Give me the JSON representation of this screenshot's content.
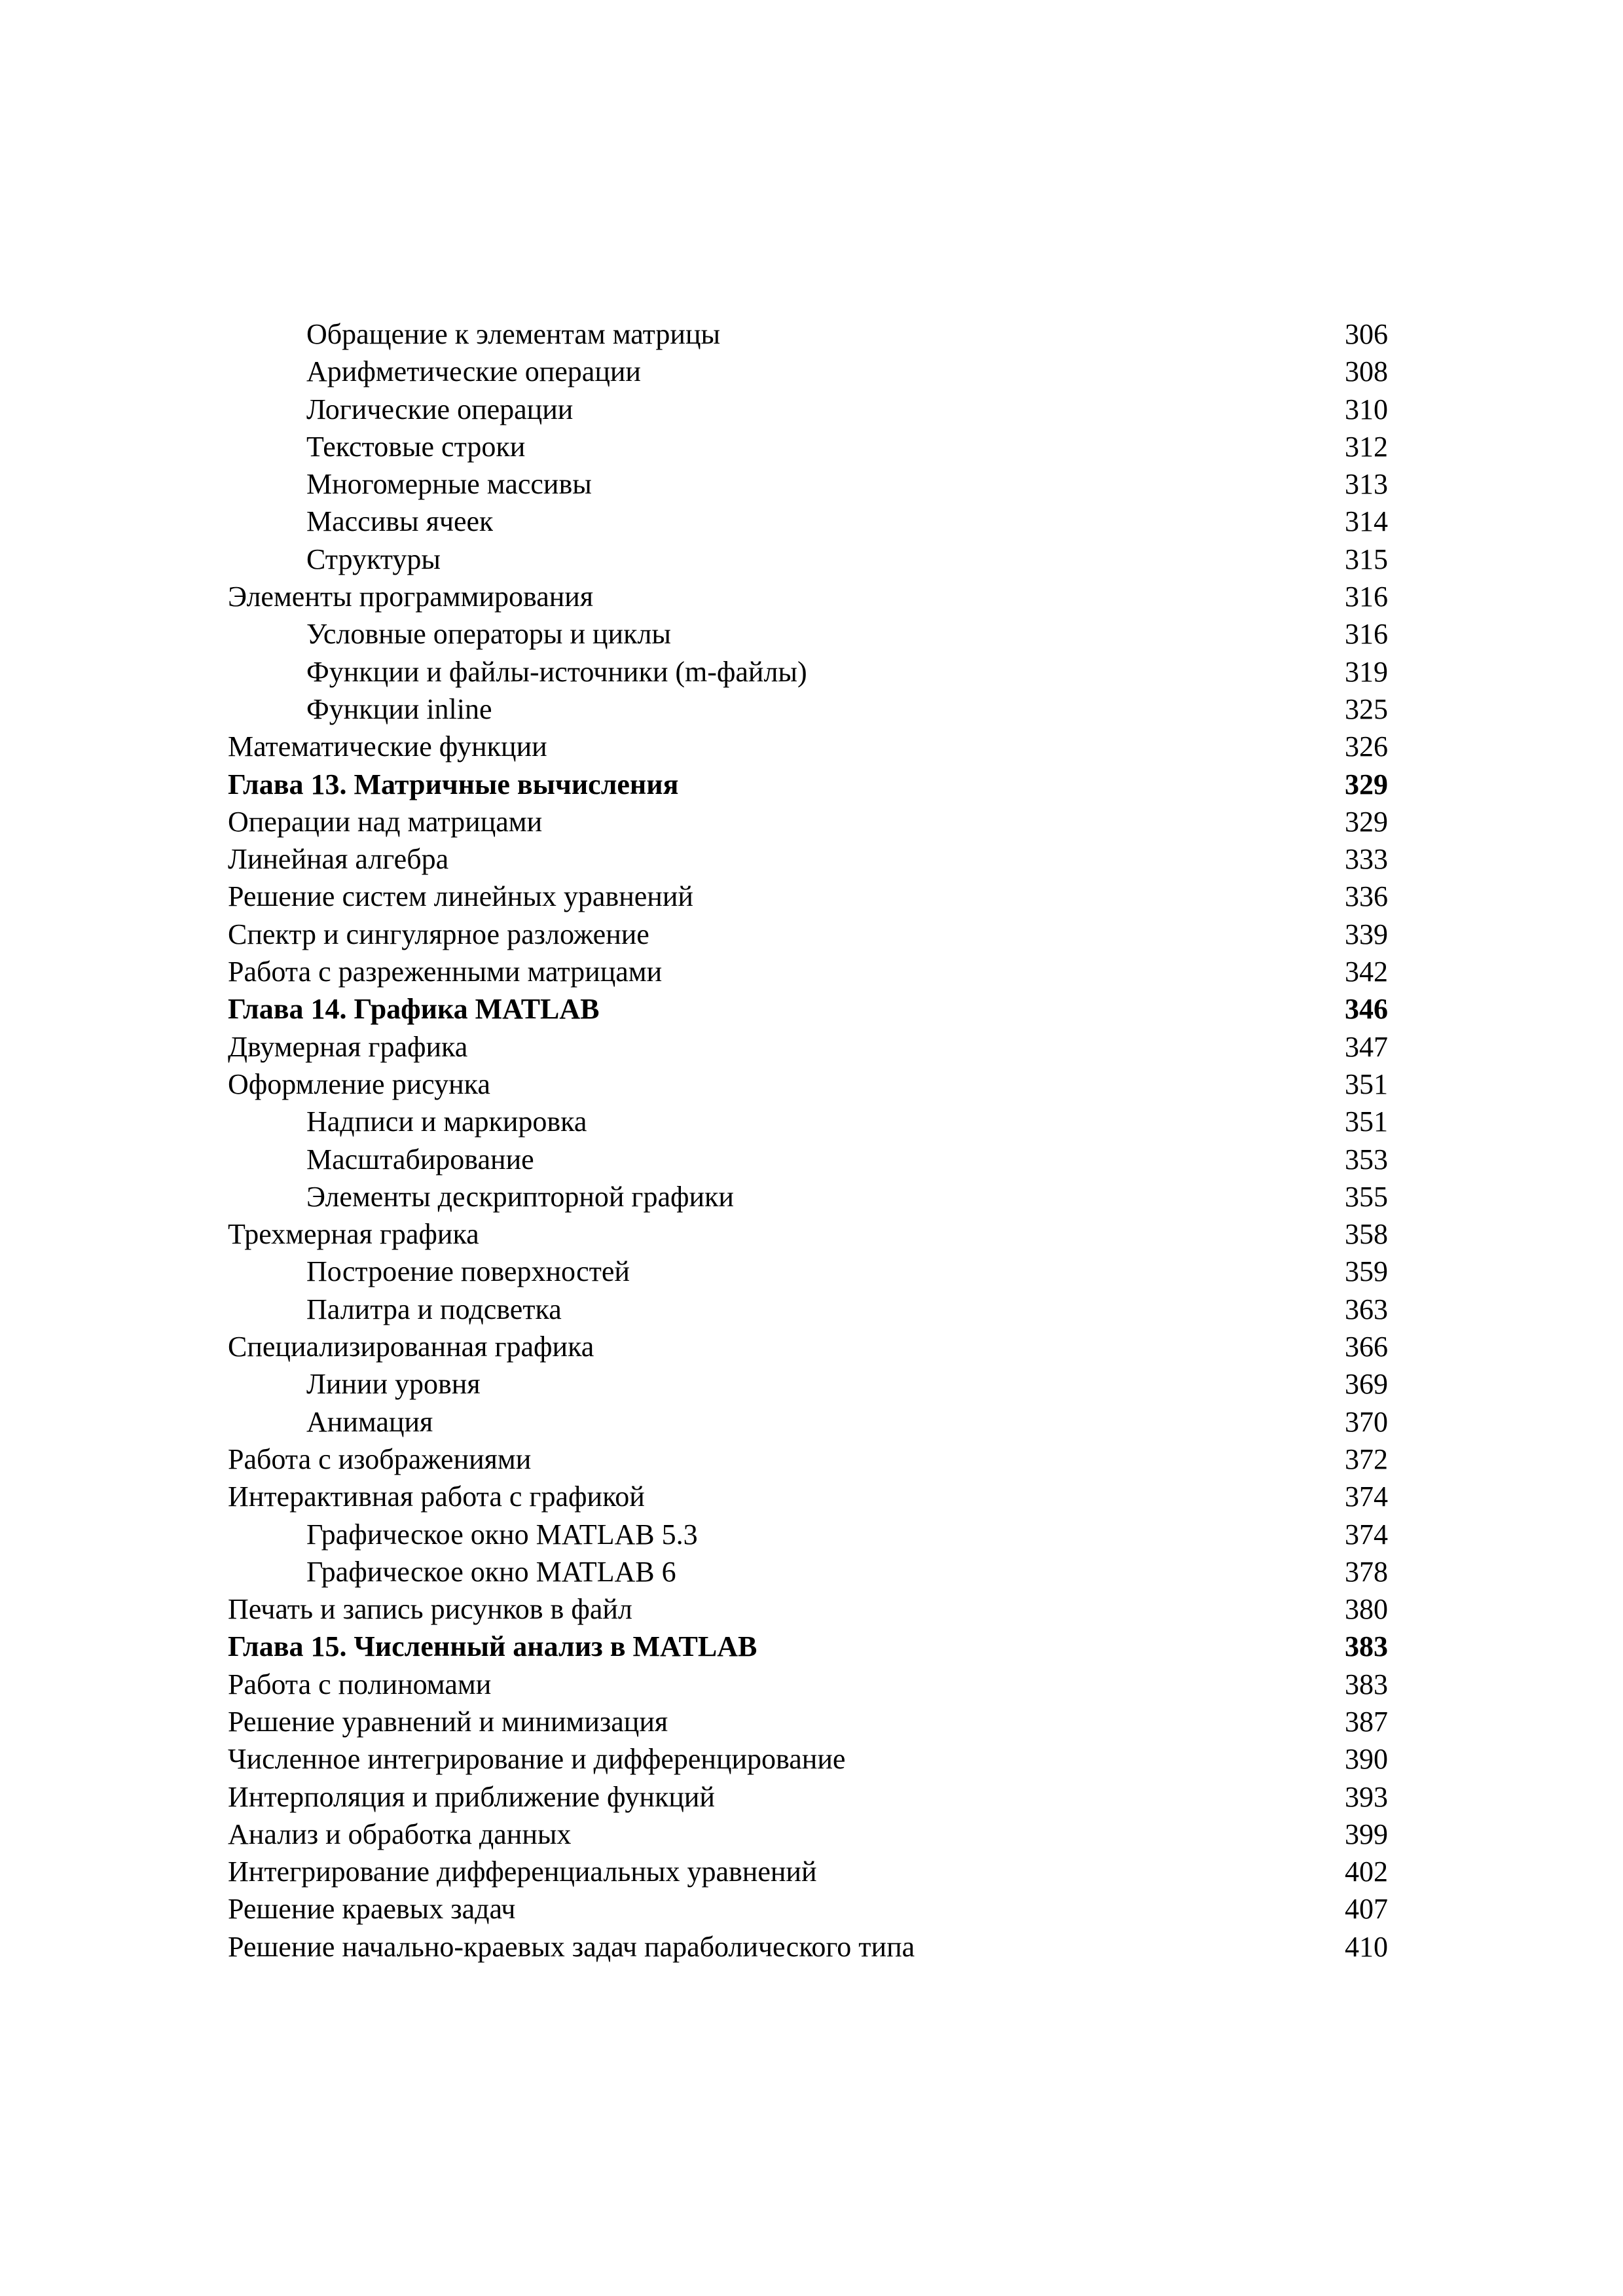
{
  "page": {
    "background": "#ffffff",
    "text_color": "#000000"
  },
  "toc": {
    "entries": [
      {
        "label": "Обращение к элементам матрицы",
        "page": "306",
        "level": 2,
        "bold": false
      },
      {
        "label": "Арифметические операции",
        "page": "308",
        "level": 2,
        "bold": false
      },
      {
        "label": "Логические операции",
        "page": "310",
        "level": 2,
        "bold": false
      },
      {
        "label": "Текстовые строки",
        "page": "312",
        "level": 2,
        "bold": false
      },
      {
        "label": "Многомерные массивы",
        "page": "313",
        "level": 2,
        "bold": false
      },
      {
        "label": "Массивы ячеек",
        "page": "314",
        "level": 2,
        "bold": false
      },
      {
        "label": "Структуры",
        "page": "315",
        "level": 2,
        "bold": false
      },
      {
        "label": "Элементы программирования",
        "page": "316",
        "level": 1,
        "bold": false
      },
      {
        "label": "Условные операторы и циклы",
        "page": "316",
        "level": 2,
        "bold": false
      },
      {
        "label": "Функции и файлы-источники (m-файлы)",
        "page": "319",
        "level": 2,
        "bold": false
      },
      {
        "label": "Функции inline",
        "page": "325",
        "level": 2,
        "bold": false
      },
      {
        "label": "Математические функции",
        "page": "326",
        "level": 1,
        "bold": false
      },
      {
        "label": "Глава 13. Матричные вычисления",
        "page": "329",
        "level": 1,
        "bold": true
      },
      {
        "label": "Операции над матрицами",
        "page": "329",
        "level": 1,
        "bold": false
      },
      {
        "label": "Линейная алгебра",
        "page": "333",
        "level": 1,
        "bold": false
      },
      {
        "label": "Решение систем линейных уравнений",
        "page": "336",
        "level": 1,
        "bold": false
      },
      {
        "label": "Спектр и сингулярное разложение",
        "page": "339",
        "level": 1,
        "bold": false
      },
      {
        "label": "Работа с разреженными матрицами",
        "page": "342",
        "level": 1,
        "bold": false
      },
      {
        "label": "Глава 14. Графика MATLAB",
        "page": "346",
        "level": 1,
        "bold": true
      },
      {
        "label": "Двумерная графика",
        "page": "347",
        "level": 1,
        "bold": false
      },
      {
        "label": "Оформление рисунка",
        "page": "351",
        "level": 1,
        "bold": false
      },
      {
        "label": "Надписи и маркировка",
        "page": "351",
        "level": 2,
        "bold": false
      },
      {
        "label": "Масштабирование",
        "page": "353",
        "level": 2,
        "bold": false
      },
      {
        "label": "Элементы дескрипторной графики",
        "page": "355",
        "level": 2,
        "bold": false
      },
      {
        "label": "Трехмерная графика",
        "page": "358",
        "level": 1,
        "bold": false
      },
      {
        "label": "Построение поверхностей",
        "page": "359",
        "level": 2,
        "bold": false
      },
      {
        "label": "Палитра и подсветка",
        "page": "363",
        "level": 2,
        "bold": false
      },
      {
        "label": "Специализированная графика",
        "page": "366",
        "level": 1,
        "bold": false
      },
      {
        "label": "Линии уровня",
        "page": "369",
        "level": 2,
        "bold": false
      },
      {
        "label": "Анимация",
        "page": "370",
        "level": 2,
        "bold": false
      },
      {
        "label": "Работа с изображениями",
        "page": "372",
        "level": 1,
        "bold": false
      },
      {
        "label": "Интерактивная работа с графикой",
        "page": "374",
        "level": 1,
        "bold": false
      },
      {
        "label": "Графическое окно MATLAB 5.3",
        "page": "374",
        "level": 2,
        "bold": false
      },
      {
        "label": "Графическое окно MATLAB 6",
        "page": "378",
        "level": 2,
        "bold": false
      },
      {
        "label": "Печать и запись рисунков в файл",
        "page": "380",
        "level": 1,
        "bold": false
      },
      {
        "label": "Глава 15. Численный анализ в MATLAB",
        "page": "383",
        "level": 1,
        "bold": true
      },
      {
        "label": "Работа с полиномами",
        "page": "383",
        "level": 1,
        "bold": false
      },
      {
        "label": "Решение уравнений и минимизация",
        "page": "387",
        "level": 1,
        "bold": false
      },
      {
        "label": "Численное интегрирование и дифференцирование",
        "page": "390",
        "level": 1,
        "bold": false
      },
      {
        "label": "Интерполяция и приближение функций",
        "page": "393",
        "level": 1,
        "bold": false
      },
      {
        "label": "Анализ и обработка данных",
        "page": "399",
        "level": 1,
        "bold": false
      },
      {
        "label": "Интегрирование дифференциальных уравнений",
        "page": "402",
        "level": 1,
        "bold": false
      },
      {
        "label": "Решение краевых задач",
        "page": "407",
        "level": 1,
        "bold": false
      },
      {
        "label": "Решение начально-краевых задач параболического типа",
        "page": "410",
        "level": 1,
        "bold": false
      }
    ]
  }
}
